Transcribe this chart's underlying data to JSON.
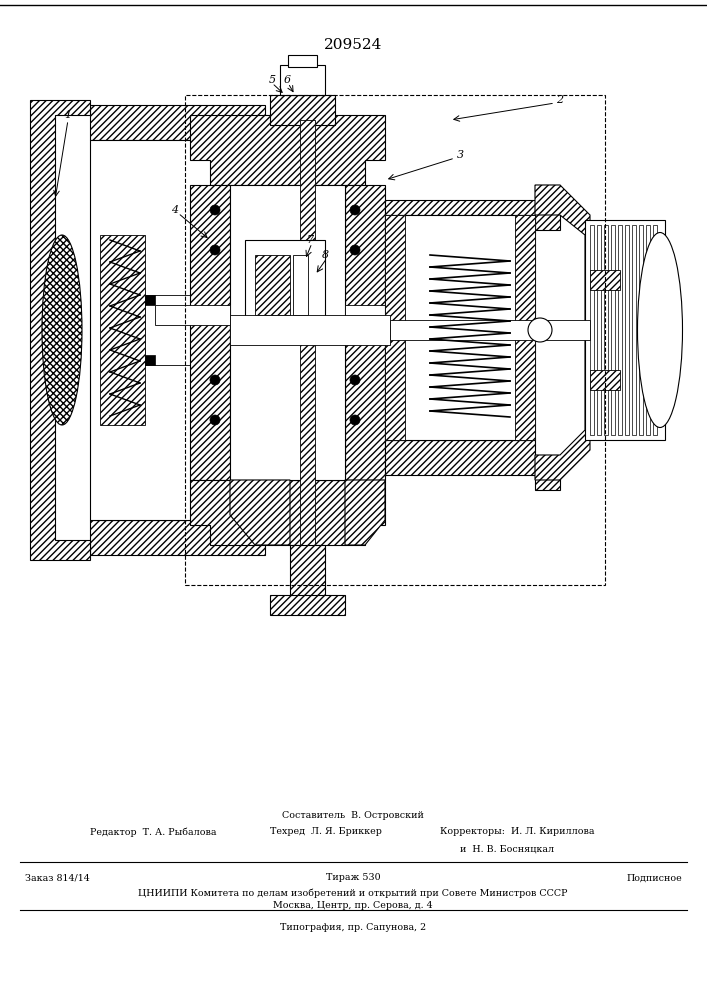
{
  "patent_number": "209524",
  "background_color": "#ffffff",
  "sostavitel_text": "Составитель  В. Островский",
  "redaktor_text": "Редактор  Т. А. Рыбалова",
  "tehred_text": "Техред  Л. Я. Бриккер",
  "korrektory_text": "Корректоры:  И. Л. Кириллова",
  "korrektory2_text": "и  Н. В. Босняцкал",
  "zakaz_text": "Заказ 814/14",
  "tirazh_text": "Тираж 530",
  "podpisnoe_text": "Подписное",
  "tsnipi_text": "ЦНИИПИ Комитета по делам изобретений и открытий при Совете Министров СССР",
  "moskva_text": "Москва, Центр, пр. Серова, д. 4",
  "tipografiya_text": "Типография, пр. Сапунова, 2"
}
